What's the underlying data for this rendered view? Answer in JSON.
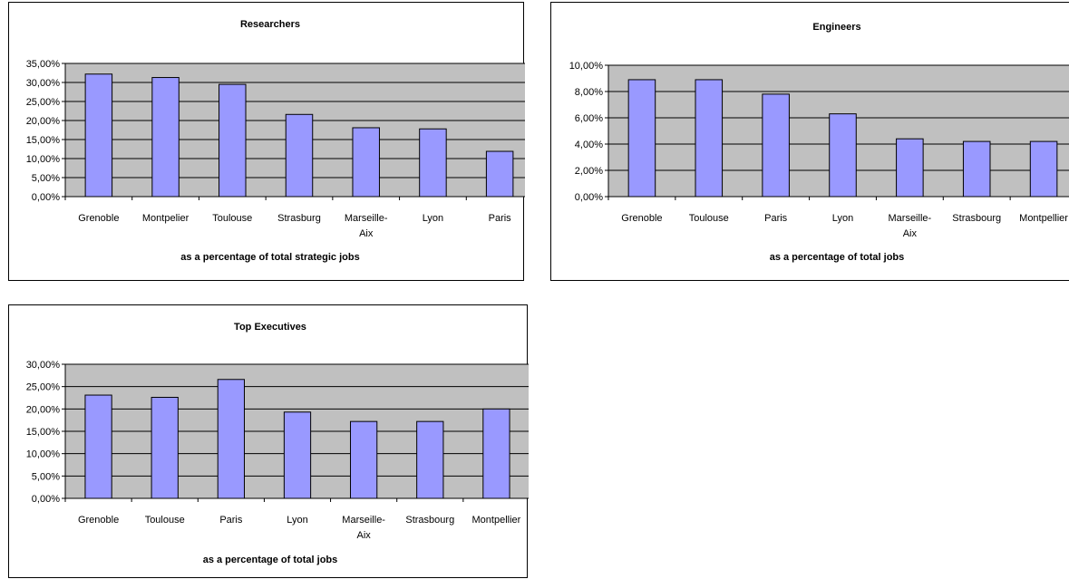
{
  "chart_data": [
    {
      "type": "bar",
      "title": "Researchers",
      "xlabel": "as a percentage of total strategic jobs",
      "ylabel": "",
      "categories": [
        "Grenoble",
        "Montpelier",
        "Toulouse",
        "Strasburg",
        "Marseille-Aix",
        "Lyon",
        "Paris"
      ],
      "category_lines": [
        [
          "Grenoble"
        ],
        [
          "Montpelier"
        ],
        [
          "Toulouse"
        ],
        [
          "Strasburg"
        ],
        [
          "Marseille-",
          "Aix"
        ],
        [
          "Lyon"
        ],
        [
          "Paris"
        ]
      ],
      "values": [
        32.2,
        31.3,
        29.5,
        21.6,
        18.1,
        17.8,
        11.9
      ],
      "ylim": [
        0,
        35
      ],
      "ytick_values": [
        0,
        5,
        10,
        15,
        20,
        25,
        30,
        35
      ],
      "ytick_labels": [
        "0,00%",
        "5,00%",
        "10,00%",
        "15,00%",
        "20,00%",
        "25,00%",
        "30,00%",
        "35,00%"
      ],
      "grid": true,
      "legend": false
    },
    {
      "type": "bar",
      "title": "Engineers",
      "xlabel": "as a percentage of total jobs",
      "ylabel": "",
      "categories": [
        "Grenoble",
        "Toulouse",
        "Paris",
        "Lyon",
        "Marseille-Aix",
        "Strasbourg",
        "Montpellier"
      ],
      "category_lines": [
        [
          "Grenoble"
        ],
        [
          "Toulouse"
        ],
        [
          "Paris"
        ],
        [
          "Lyon"
        ],
        [
          "Marseille-",
          "Aix"
        ],
        [
          "Strasbourg"
        ],
        [
          "Montpellier"
        ]
      ],
      "values": [
        8.9,
        8.9,
        7.8,
        6.3,
        4.4,
        4.2,
        4.2
      ],
      "ylim": [
        0,
        10
      ],
      "ytick_values": [
        0,
        2,
        4,
        6,
        8,
        10
      ],
      "ytick_labels": [
        "0,00%",
        "2,00%",
        "4,00%",
        "6,00%",
        "8,00%",
        "10,00%"
      ],
      "grid": true,
      "legend": false
    },
    {
      "type": "bar",
      "title": "Top Executives",
      "xlabel": "as a percentage of total jobs",
      "ylabel": "",
      "categories": [
        "Grenoble",
        "Toulouse",
        "Paris",
        "Lyon",
        "Marseille-Aix",
        "Strasbourg",
        "Montpellier"
      ],
      "category_lines": [
        [
          "Grenoble"
        ],
        [
          "Toulouse"
        ],
        [
          "Paris"
        ],
        [
          "Lyon"
        ],
        [
          "Marseille-",
          "Aix"
        ],
        [
          "Strasbourg"
        ],
        [
          "Montpellier"
        ]
      ],
      "values": [
        23.1,
        22.6,
        26.6,
        19.3,
        17.2,
        17.2,
        20.0
      ],
      "ylim": [
        0,
        30
      ],
      "ytick_values": [
        0,
        5,
        10,
        15,
        20,
        25,
        30
      ],
      "ytick_labels": [
        "0,00%",
        "5,00%",
        "10,00%",
        "15,00%",
        "20,00%",
        "25,00%",
        "30,00%"
      ],
      "grid": true,
      "legend": false
    }
  ],
  "colors": {
    "bar_fill": "#9999ff",
    "plot_area": "#c0c0c0",
    "line": "#000000",
    "frame_background": "#ffffff"
  }
}
